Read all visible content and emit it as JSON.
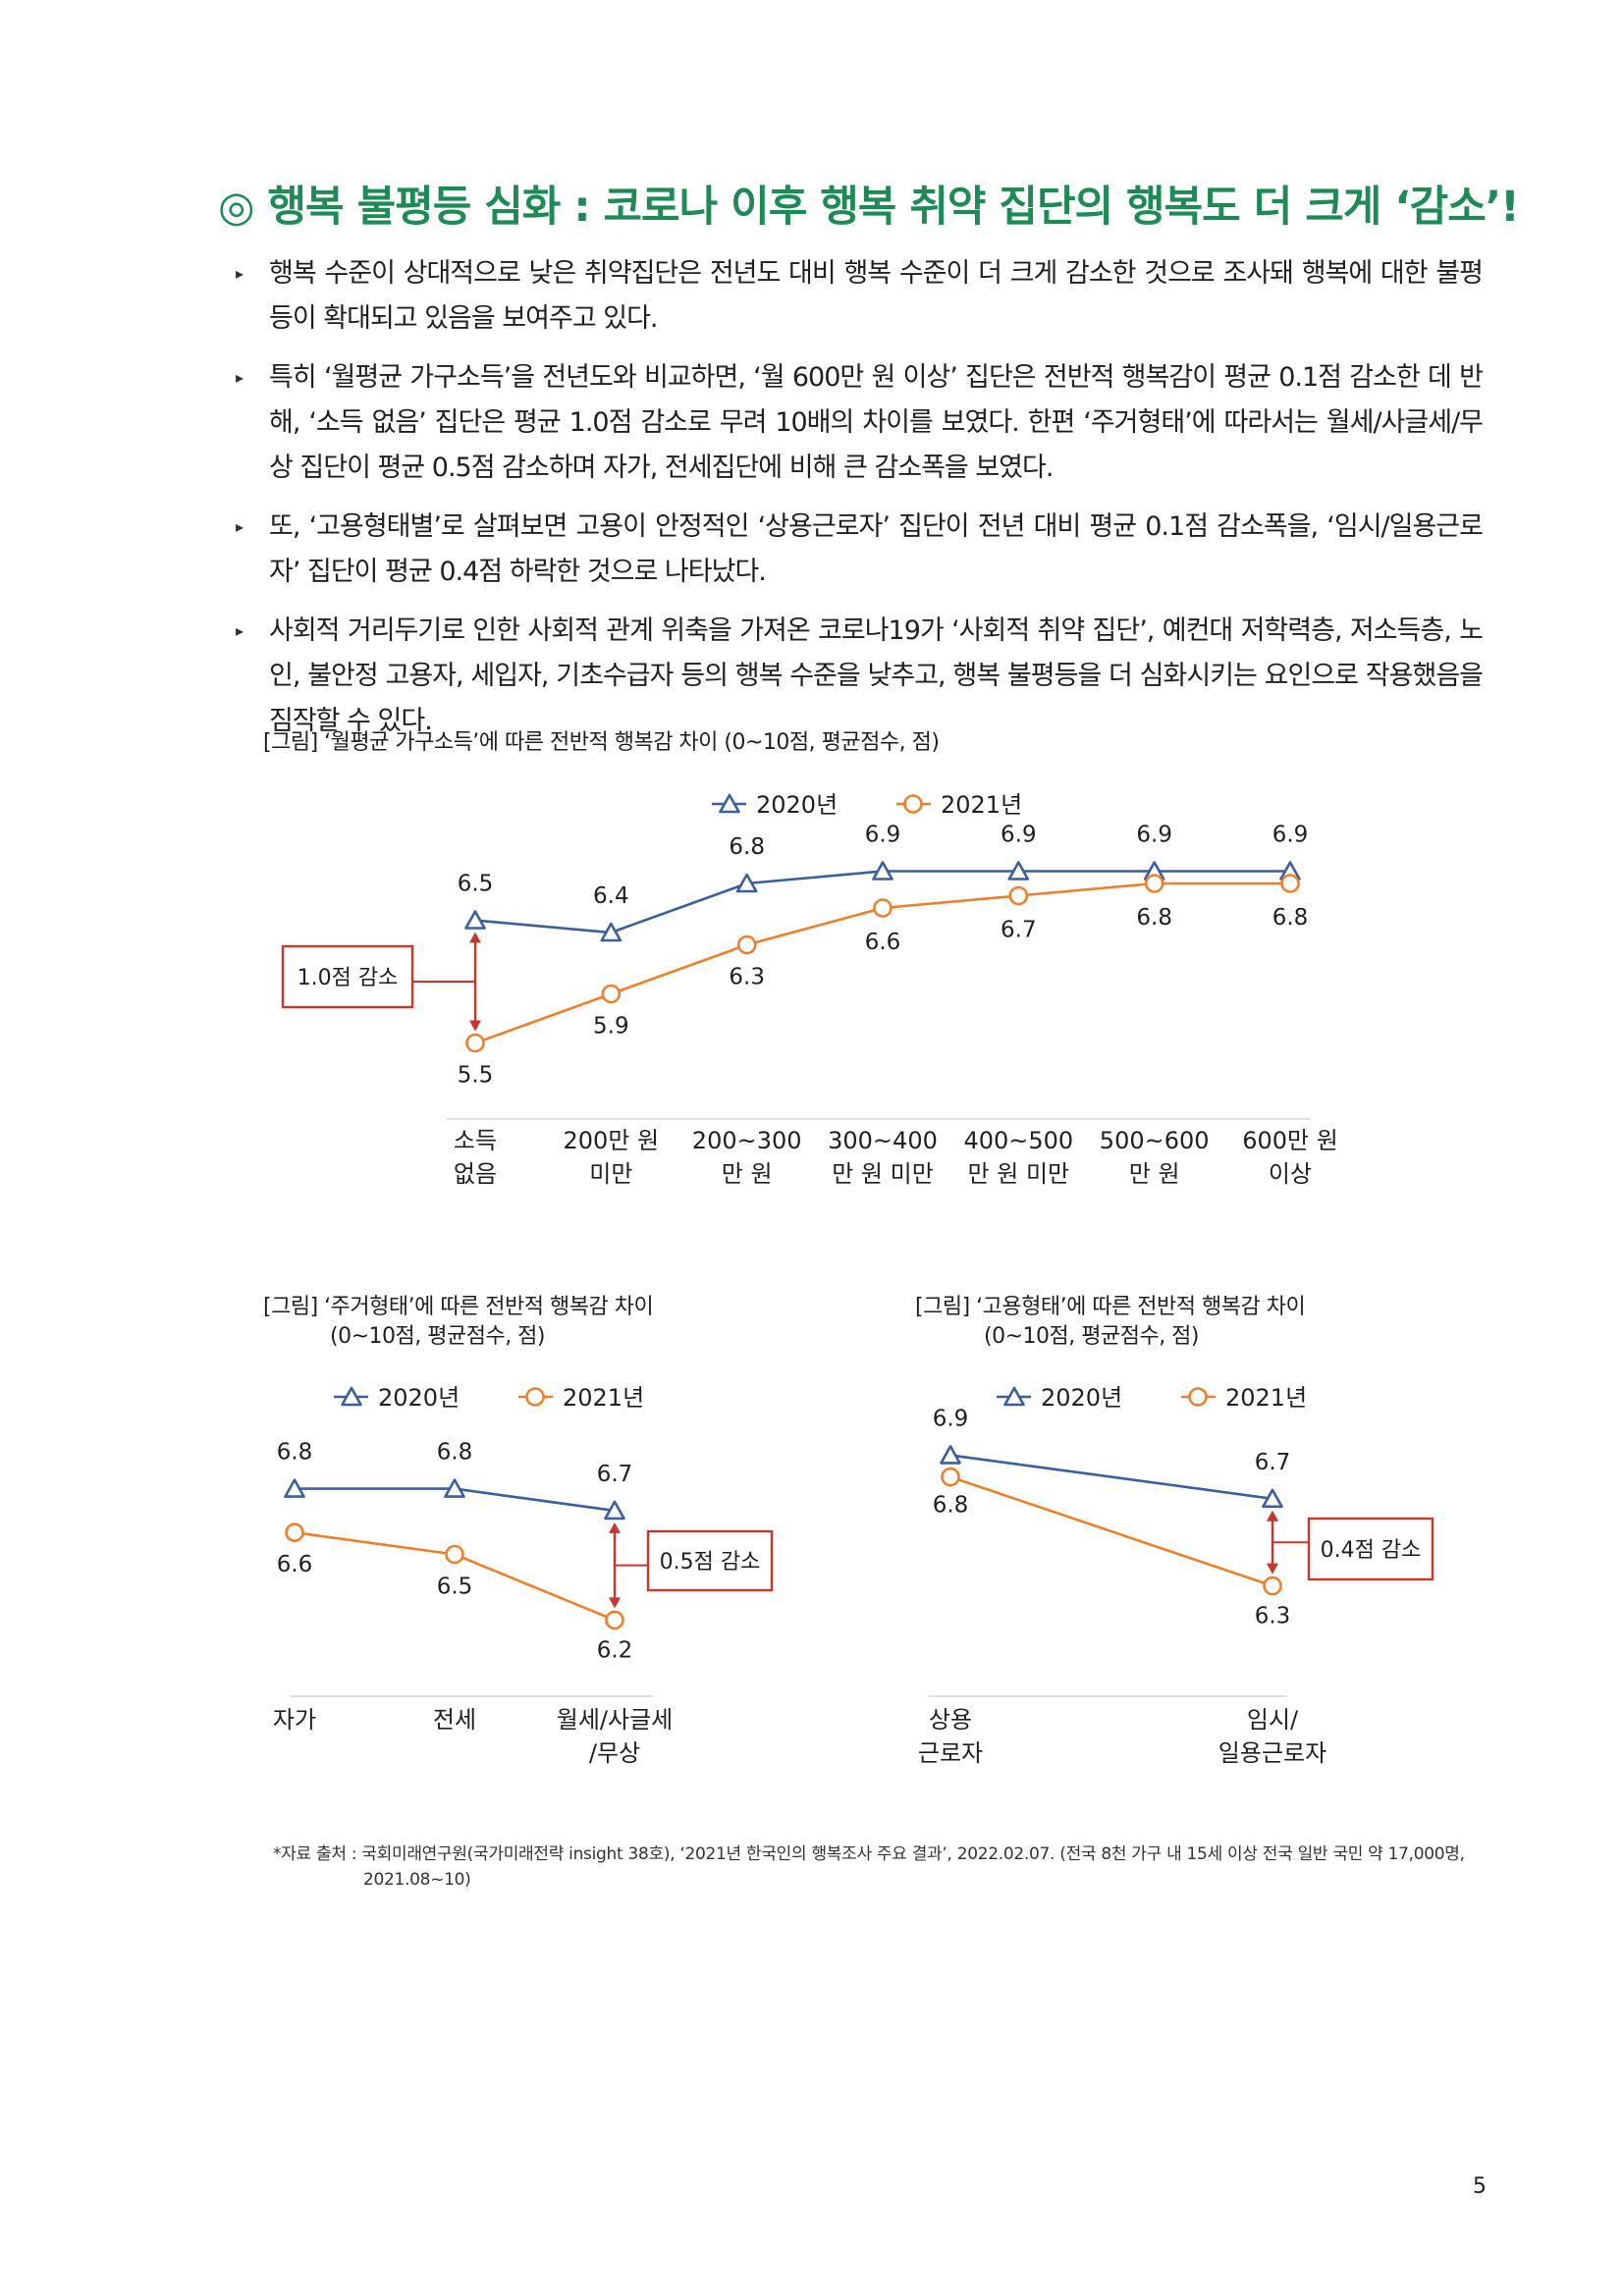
{
  "title": "◎ 행복 불평등 심화 : 코로나 이후 행복 취약 집단의 행복도 더 크게 ‘감소’!",
  "bullets": [
    "행복 수준이 상대적으로 낮은 취약집단은 전년도 대비 행복 수준이 더 크게 감소한 것으로 조사돼 행복에 대한 불평등이 확대되고 있음을 보여주고 있다.",
    "특히 ‘월평균 가구소득’을 전년도와 비교하면, ‘월 600만 원 이상’ 집단은 전반적 행복감이 평균 0.1점 감소한 데 반해, ‘소득 없음’ 집단은 평균 1.0점 감소로 무려 10배의 차이를 보였다. 한편 ‘주거형태’에 따라서는 월세/사글세/무상 집단이 평균 0.5점 감소하며 자가, 전세집단에 비해 큰 감소폭을 보였다.",
    "또, ‘고용형태별’로 살펴보면 고용이 안정적인 ‘상용근로자’ 집단이 전년 대비 평균 0.1점 감소폭을, ‘임시/일용근로자’ 집단이 평균 0.4점 하락한 것으로 나타났다.",
    "사회적 거리두기로 인한 사회적 관계 위축을 가져온 코로나19가 ‘사회적 취약 집단’, 예컨대 저학력층, 저소득층, 노인, 불안정 고용자, 세입자, 기초수급자 등의 행복 수준을 낮추고, 행복 불평등을 더 심화시키는 요인으로 작용했음을 짐작할 수 있다."
  ],
  "bullet_mark": "▸",
  "colors": {
    "series2020": "#3a5f9e",
    "series2021": "#f07f2c",
    "callout": "#c8372d",
    "title": "#1e8a56"
  },
  "chart_data": [
    {
      "type": "line",
      "caption": "[그림] ‘월평균 가구소득’에 따른 전반적 행복감 차이 (0~10점, 평균점수, 점)",
      "categories": [
        [
          "소득",
          "없음"
        ],
        [
          "200만 원",
          "미만"
        ],
        [
          "200~300",
          "만 원"
        ],
        [
          "300~400",
          "만 원 미만"
        ],
        [
          "400~500",
          "만 원 미만"
        ],
        [
          "500~600",
          "만 원"
        ],
        [
          "600만 원",
          "이상"
        ]
      ],
      "series": [
        {
          "name": "2020년",
          "values": [
            6.5,
            6.4,
            6.8,
            6.9,
            6.9,
            6.9,
            6.9
          ]
        },
        {
          "name": "2021년",
          "values": [
            5.5,
            5.9,
            6.3,
            6.6,
            6.7,
            6.8,
            6.8
          ]
        }
      ],
      "labels": [
        [
          "6.5",
          "6.4",
          "6.8",
          "6.9",
          "6.9",
          "6.9",
          "6.9"
        ],
        [
          "5.5",
          "5.9",
          "6.3",
          "6.6",
          "6.7",
          "6.8",
          "6.8"
        ]
      ],
      "ylim": [
        5.2,
        7.2
      ],
      "annotation": {
        "text": "1.0점 감소",
        "index": 0
      }
    },
    {
      "type": "line",
      "caption": "[그림] ‘주거형태’에 따른 전반적 행복감 차이",
      "caption2": "(0~10점, 평균점수, 점)",
      "categories": [
        [
          "자가"
        ],
        [
          "전세"
        ],
        [
          "월세/사글세",
          "/무상"
        ]
      ],
      "series": [
        {
          "name": "2020년",
          "values": [
            6.8,
            6.8,
            6.7
          ]
        },
        {
          "name": "2021년",
          "values": [
            6.6,
            6.5,
            6.2
          ]
        }
      ],
      "labels": [
        [
          "6.8",
          "6.8",
          "6.7"
        ],
        [
          "6.6",
          "6.5",
          "6.2"
        ]
      ],
      "ylim": [
        6.0,
        7.0
      ],
      "annotation": {
        "text": "0.5점 감소",
        "index": 2
      }
    },
    {
      "type": "line",
      "caption": "[그림] ‘고용형태’에 따른 전반적 행복감 차이",
      "caption2": "(0~10점, 평균점수, 점)",
      "categories": [
        [
          "상용",
          "근로자"
        ],
        [
          "임시/",
          "일용근로자"
        ]
      ],
      "series": [
        {
          "name": "2020년",
          "values": [
            6.9,
            6.7
          ]
        },
        {
          "name": "2021년",
          "values": [
            6.8,
            6.3
          ]
        }
      ],
      "labels": [
        [
          "6.9",
          "6.7"
        ],
        [
          "6.8",
          "6.3"
        ]
      ],
      "ylim": [
        6.1,
        7.1
      ],
      "annotation": {
        "text": "0.4점 감소",
        "index": 1
      }
    }
  ],
  "footnote": "*자료 출처 : 국회미래연구원(국가미래전략 insight 38호), ‘2021년 한국인의 행복조사 주요 결과’, 2022.02.07. (전국 8천 가구 내 15세 이상 전국 일반 국민 약 17,000명, 2021.08~10)",
  "page_number": "5"
}
